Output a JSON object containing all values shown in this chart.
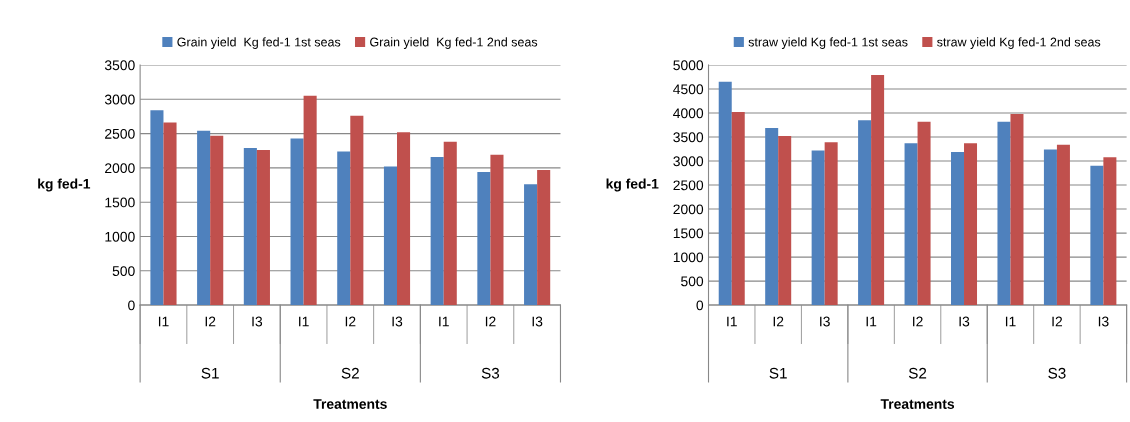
{
  "chart_data": [
    {
      "type": "bar",
      "xlabel": "Treatments",
      "ylabel": "kg fed-1",
      "categories": [
        "I1",
        "I2",
        "I3",
        "I1",
        "I2",
        "I3",
        "I1",
        "I2",
        "I3"
      ],
      "annotations": [
        "S1",
        "S2",
        "S3"
      ],
      "series": [
        {
          "name": "Grain yield  Kg fed-1 1st seas",
          "color": "#4f81bd",
          "values": [
            2840,
            2540,
            2290,
            2430,
            2240,
            2020,
            2160,
            1940,
            1760
          ]
        },
        {
          "name": "Grain yield  Kg fed-1 2nd seas",
          "color": "#c0504d",
          "values": [
            2660,
            2470,
            2260,
            3050,
            2760,
            2520,
            2380,
            2190,
            1970
          ]
        }
      ],
      "ylim": [
        0,
        3500
      ],
      "yticks": [
        0,
        500,
        1000,
        1500,
        2000,
        2500,
        3000,
        3500
      ],
      "grid": "y",
      "legend": "top"
    },
    {
      "type": "bar",
      "xlabel": "Treatments",
      "ylabel": "kg fed-1",
      "categories": [
        "I1",
        "I2",
        "I3",
        "I1",
        "I2",
        "I3",
        "I1",
        "I2",
        "I3"
      ],
      "annotations": [
        "S1",
        "S2",
        "S3"
      ],
      "series": [
        {
          "name": "straw yield Kg fed-1 1st seas",
          "color": "#4f81bd",
          "values": [
            4650,
            3690,
            3220,
            3850,
            3370,
            3190,
            3820,
            3240,
            2900
          ]
        },
        {
          "name": "straw yield Kg fed-1 2nd seas",
          "color": "#c0504d",
          "values": [
            4020,
            3520,
            3390,
            4790,
            3820,
            3370,
            3980,
            3340,
            3080
          ]
        }
      ],
      "ylim": [
        0,
        5000
      ],
      "yticks": [
        0,
        500,
        1000,
        1500,
        2000,
        2500,
        3000,
        3500,
        4000,
        4500,
        5000
      ],
      "grid": "y",
      "legend": "top"
    }
  ]
}
